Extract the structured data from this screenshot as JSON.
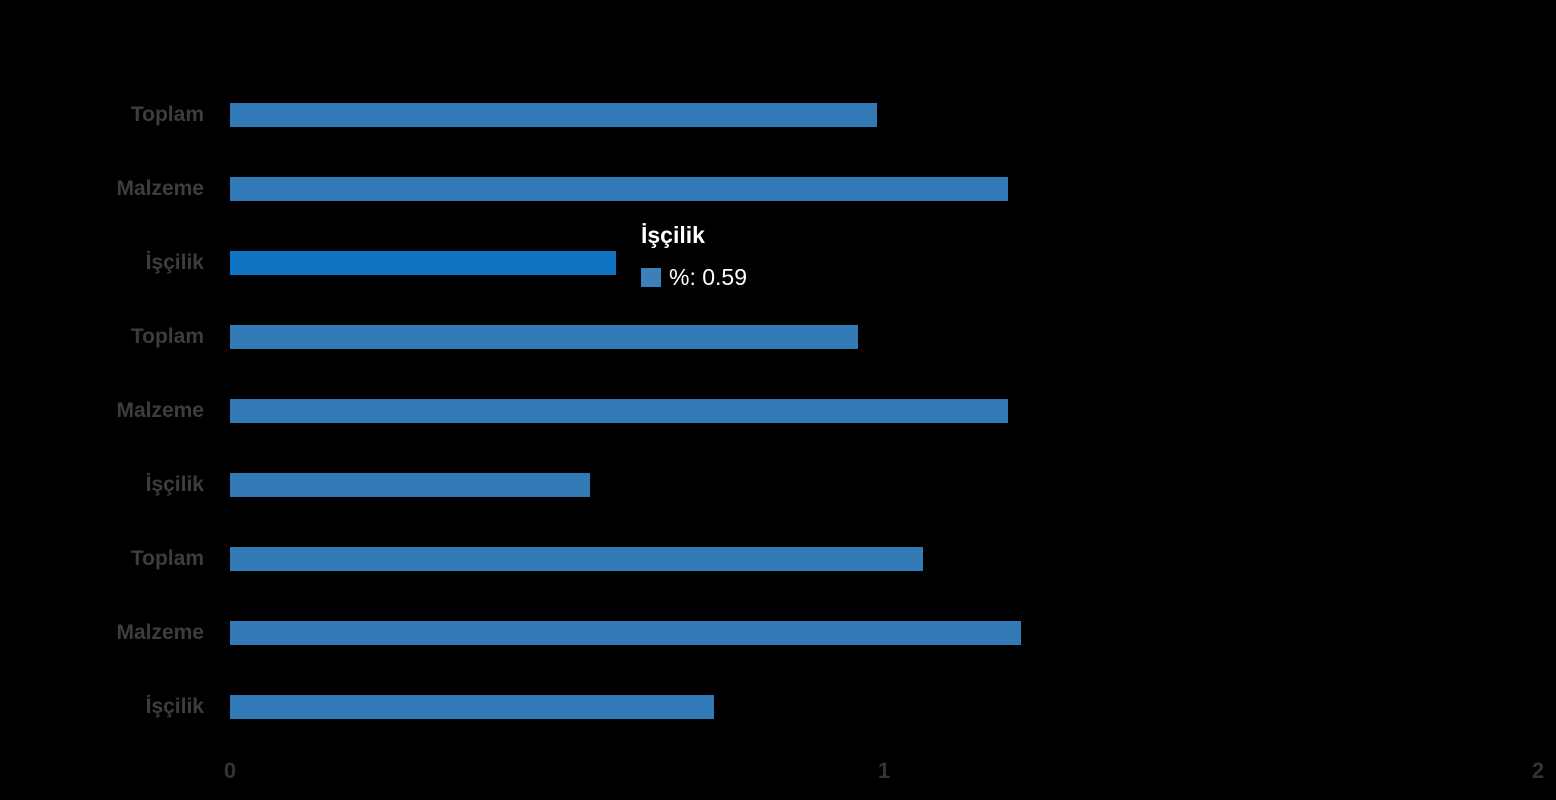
{
  "chart_data": {
    "type": "bar",
    "orientation": "horizontal",
    "title": "",
    "xlabel": "",
    "ylabel": "",
    "categories": [
      "Toplam",
      "Malzeme",
      "İşçilik",
      "Toplam",
      "Malzeme",
      "İşçilik",
      "Toplam",
      "Malzeme",
      "İşçilik"
    ],
    "series": [
      {
        "name": "%",
        "values": [
          0.99,
          1.19,
          0.59,
          0.96,
          1.19,
          0.55,
          1.06,
          1.21,
          0.74
        ]
      }
    ],
    "highlighted_index": 2,
    "xlim": [
      0,
      2
    ],
    "x_ticks": [
      "0",
      "1",
      "2"
    ],
    "grid": false,
    "legend_position": "none",
    "colors": {
      "bar": "#317ab5",
      "bar_highlight": "#0f74c4",
      "background": "#000000",
      "category_label": "#3d3d3d",
      "tick_label": "#343434",
      "tooltip_text": "#ffffff"
    }
  },
  "tooltip": {
    "title": "İşçilik",
    "value_label": "%: 0.59",
    "swatch_color": "#3c80ba"
  }
}
